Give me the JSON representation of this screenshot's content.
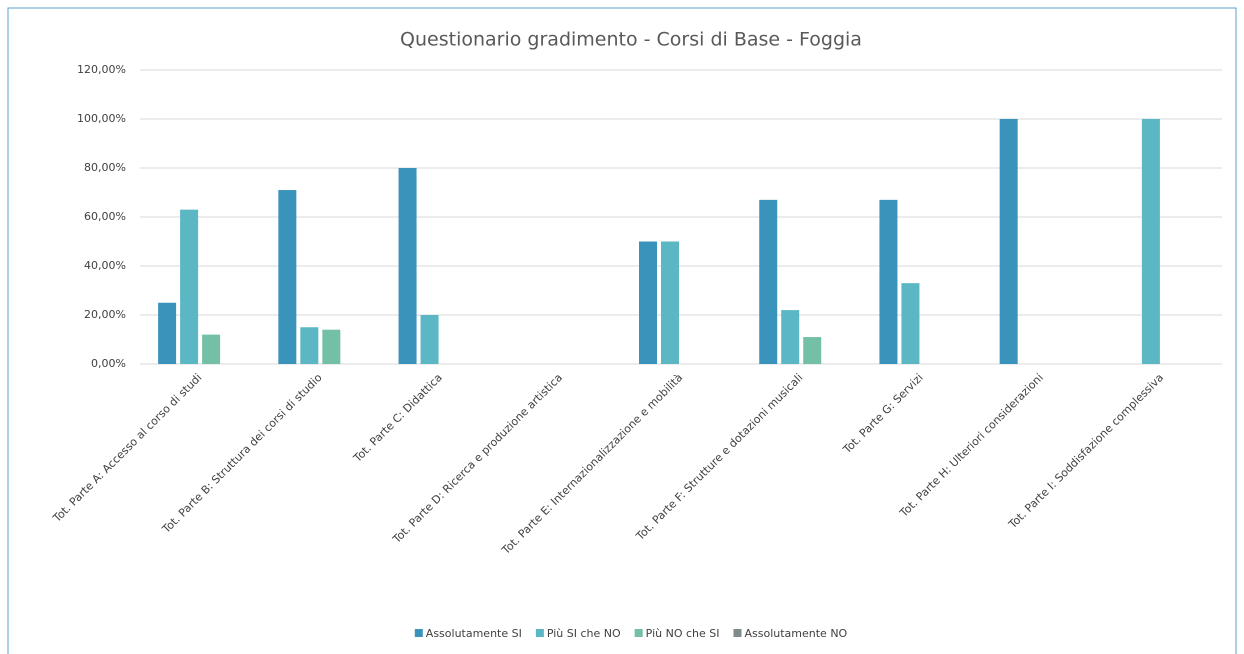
{
  "chart_data": {
    "type": "bar",
    "title": "Questionario gradimento - Corsi di Base - Foggia",
    "categories": [
      "Tot. Parte A: Accesso al corso di studi",
      "Tot. Parte B: Struttura dei corsi di studio",
      "Tot. Parte C: Didattica",
      "Tot. Parte D: Ricerca e produzione artistica",
      "Tot. Parte E: Internazionalizzazione e mobilità",
      "Tot. Parte F: Strutture e dotazioni musicali",
      "Tot. Parte G: Servizi",
      "Tot. Parte H: Ulteriori considerazioni",
      "Tot. Parte I: Soddisfazione complessiva"
    ],
    "series": [
      {
        "name": "Assolutamente SI",
        "color": "#3a93bb",
        "values": [
          25,
          71,
          80,
          0,
          50,
          67,
          67,
          100,
          0
        ]
      },
      {
        "name": "Più SI che NO",
        "color": "#5bb7c3",
        "values": [
          63,
          15,
          20,
          0,
          50,
          22,
          33,
          0,
          100
        ]
      },
      {
        "name": "Più NO che SI",
        "color": "#74c0a6",
        "values": [
          12,
          14,
          0,
          0,
          0,
          11,
          0,
          0,
          0
        ]
      },
      {
        "name": "Assolutamente NO",
        "color": "#7f8c8d",
        "values": [
          0,
          0,
          0,
          0,
          0,
          0,
          0,
          0,
          0
        ]
      }
    ],
    "ylim": [
      0,
      120
    ],
    "yticks": [
      {
        "value": 0,
        "label": "0,00%"
      },
      {
        "value": 20,
        "label": "20,00%"
      },
      {
        "value": 40,
        "label": "40,00%"
      },
      {
        "value": 60,
        "label": "60,00%"
      },
      {
        "value": 80,
        "label": "80,00%"
      },
      {
        "value": 100,
        "label": "100,00%"
      },
      {
        "value": 120,
        "label": "120,00%"
      }
    ],
    "grid": true,
    "legend": "bottom"
  }
}
